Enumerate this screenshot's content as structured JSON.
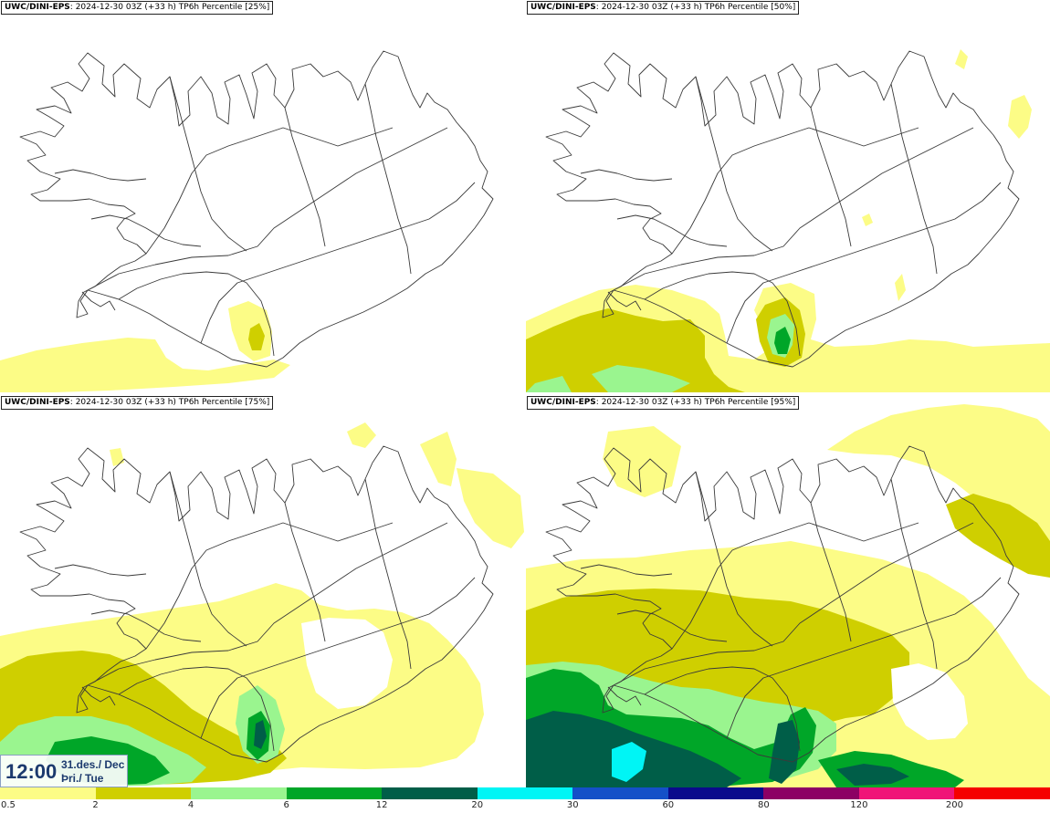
{
  "panels": [
    {
      "model": "UWC/DINI-EPS",
      "info": ": 2024-12-30 03Z (+33 h) TP6h Percentile [25%]"
    },
    {
      "model": "UWC/DINI-EPS",
      "info": ": 2024-12-30 03Z (+33 h) TP6h Percentile [50%]"
    },
    {
      "model": "UWC/DINI-EPS",
      "info": ": 2024-12-30 03Z (+33 h) TP6h Percentile [75%]"
    },
    {
      "model": "UWC/DINI-EPS",
      "info": ": 2024-12-30 03Z (+33 h) TP6h Percentile [95%]"
    }
  ],
  "time": {
    "clock": "12:00",
    "date_line1": "31.des./ Dec",
    "date_line2": "Þri./ Tue"
  },
  "legend": {
    "ticks": [
      "0.5",
      "2",
      "4",
      "6",
      "12",
      "20",
      "30",
      "60",
      "80",
      "120",
      "200"
    ],
    "colors": [
      "#fcfc86",
      "#cfcf00",
      "#9af58f",
      "#00a628",
      "#005e48",
      "#00f5f5",
      "#1450c8",
      "#0a0a8c",
      "#8c0064",
      "#f01478",
      "#f50000"
    ]
  },
  "map_style": {
    "coast": "#3a3a3a",
    "roads": "#333333",
    "background": "#ffffff"
  }
}
